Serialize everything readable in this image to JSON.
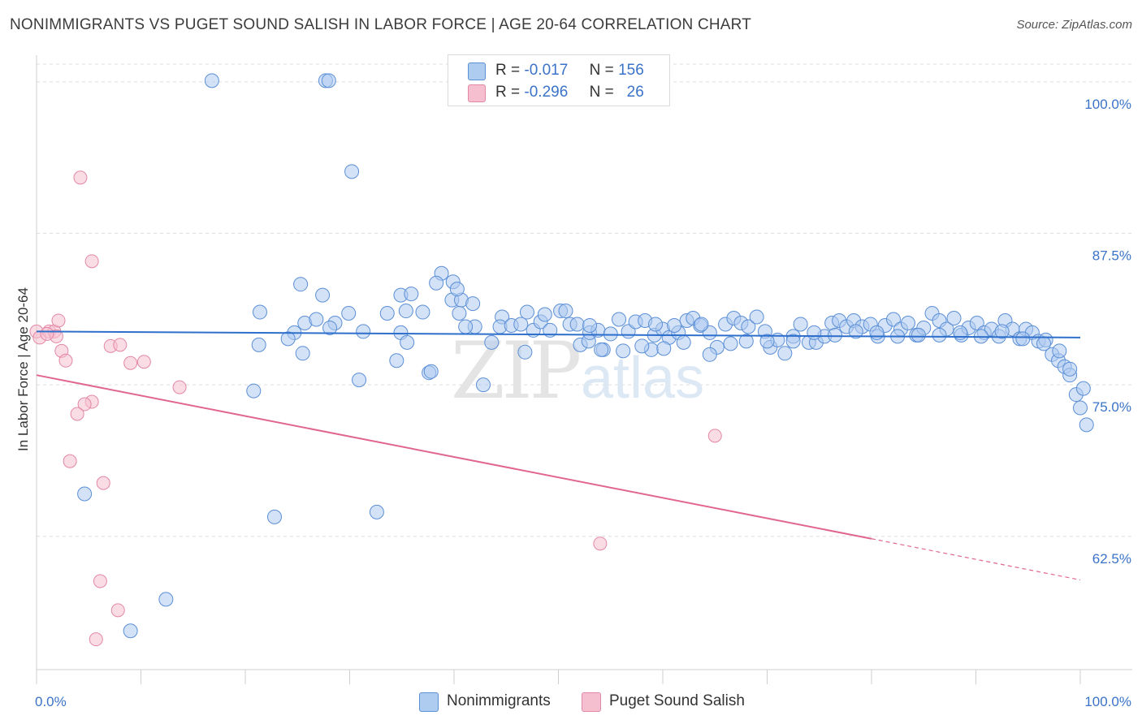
{
  "title": "NONIMMIGRANTS VS PUGET SOUND SALISH IN LABOR FORCE | AGE 20-64 CORRELATION CHART",
  "source": "Source: ZipAtlas.com",
  "legend": {
    "rows": [
      {
        "r_label": "R =",
        "r_value": "-0.017",
        "n_label": "N =",
        "n_value": "156"
      },
      {
        "r_label": "R =",
        "r_value": "-0.296",
        "n_label": "N =",
        "n_value": "26"
      }
    ],
    "series_names": [
      "Nonimmigrants",
      "Puget Sound Salish"
    ]
  },
  "watermark": {
    "zip": "ZIP",
    "atlas": "atlas"
  },
  "colors": {
    "blue_fill": "#aecbf0",
    "blue_stroke": "#5b8fd6",
    "blue_line": "#2e6fcc",
    "pink_fill": "#f6bfd0",
    "pink_stroke": "#e387a6",
    "pink_line": "#e0668f",
    "tick_label": "#3a73c8",
    "grid": "#dddddd"
  },
  "chart_data": {
    "type": "scatter",
    "ylabel": "In Labor Force | Age 20-64",
    "xlabel": "",
    "x_tick_labels": [
      "0.0%",
      "100.0%"
    ],
    "y_tick_labels": [
      "100.0%",
      "87.5%",
      "75.0%",
      "62.5%"
    ],
    "y_ticks": [
      100.0,
      87.5,
      75.0,
      62.5
    ],
    "xlim": [
      0,
      100
    ],
    "ylim": [
      51.5,
      102.2
    ],
    "grid": "horizontal dashed",
    "series": [
      {
        "name": "Nonimmigrants",
        "color": "#5b8fd6",
        "trend": {
          "x0": 0,
          "y0": 79.4,
          "x1": 100,
          "y1": 78.9
        },
        "points": [
          [
            16.8,
            100.1
          ],
          [
            27.7,
            100.1
          ],
          [
            28.0,
            100.1
          ],
          [
            30.2,
            92.6
          ],
          [
            25.3,
            83.3
          ],
          [
            27.4,
            82.4
          ],
          [
            21.4,
            81.0
          ],
          [
            24.7,
            79.3
          ],
          [
            25.7,
            80.1
          ],
          [
            26.8,
            80.4
          ],
          [
            28.6,
            80.1
          ],
          [
            29.9,
            80.9
          ],
          [
            21.3,
            78.3
          ],
          [
            24.1,
            78.8
          ],
          [
            25.5,
            77.6
          ],
          [
            28.1,
            79.7
          ],
          [
            31.3,
            79.4
          ],
          [
            34.9,
            82.4
          ],
          [
            35.4,
            81.1
          ],
          [
            35.9,
            82.5
          ],
          [
            38.8,
            84.2
          ],
          [
            39.8,
            82.0
          ],
          [
            38.3,
            83.4
          ],
          [
            39.9,
            83.5
          ],
          [
            40.7,
            82.0
          ],
          [
            41.8,
            81.7
          ],
          [
            42.0,
            79.8
          ],
          [
            40.5,
            80.9
          ],
          [
            42.8,
            75.0
          ],
          [
            34.9,
            79.3
          ],
          [
            33.6,
            80.9
          ],
          [
            34.5,
            77.0
          ],
          [
            35.5,
            78.5
          ],
          [
            37.6,
            76.0
          ],
          [
            37.8,
            76.1
          ],
          [
            41.1,
            79.8
          ],
          [
            30.9,
            75.4
          ],
          [
            20.8,
            74.5
          ],
          [
            43.6,
            78.5
          ],
          [
            44.6,
            80.6
          ],
          [
            44.4,
            79.8
          ],
          [
            45.5,
            79.9
          ],
          [
            46.4,
            80.0
          ],
          [
            47.6,
            79.5
          ],
          [
            46.8,
            77.7
          ],
          [
            48.3,
            80.2
          ],
          [
            49.2,
            79.5
          ],
          [
            48.7,
            80.8
          ],
          [
            50.2,
            81.1
          ],
          [
            50.7,
            81.1
          ],
          [
            51.1,
            80.0
          ],
          [
            51.8,
            80.0
          ],
          [
            52.1,
            78.3
          ],
          [
            52.9,
            78.6
          ],
          [
            53.0,
            79.3
          ],
          [
            53.8,
            79.5
          ],
          [
            54.3,
            77.9
          ],
          [
            55.0,
            79.2
          ],
          [
            55.8,
            80.4
          ],
          [
            56.7,
            79.4
          ],
          [
            57.4,
            80.2
          ],
          [
            58.3,
            80.3
          ],
          [
            58.9,
            77.9
          ],
          [
            59.2,
            79.1
          ],
          [
            60.0,
            79.6
          ],
          [
            60.6,
            78.9
          ],
          [
            61.5,
            79.3
          ],
          [
            62.3,
            80.3
          ],
          [
            62.9,
            80.5
          ],
          [
            63.6,
            79.9
          ],
          [
            64.5,
            79.3
          ],
          [
            65.2,
            78.1
          ],
          [
            66.0,
            80.0
          ],
          [
            66.8,
            80.5
          ],
          [
            67.5,
            80.1
          ],
          [
            68.2,
            79.8
          ],
          [
            69.0,
            80.6
          ],
          [
            69.8,
            79.4
          ],
          [
            70.3,
            78.1
          ],
          [
            71.0,
            78.7
          ],
          [
            71.7,
            77.6
          ],
          [
            72.5,
            79.0
          ],
          [
            73.2,
            80.0
          ],
          [
            74.0,
            78.5
          ],
          [
            74.7,
            78.5
          ],
          [
            75.5,
            79.0
          ],
          [
            76.2,
            80.1
          ],
          [
            76.9,
            80.3
          ],
          [
            77.6,
            79.8
          ],
          [
            78.3,
            80.3
          ],
          [
            79.1,
            79.8
          ],
          [
            79.9,
            80.0
          ],
          [
            80.6,
            79.0
          ],
          [
            81.3,
            79.9
          ],
          [
            82.1,
            80.4
          ],
          [
            82.8,
            79.6
          ],
          [
            83.5,
            80.1
          ],
          [
            84.3,
            79.1
          ],
          [
            85.0,
            79.7
          ],
          [
            85.8,
            80.9
          ],
          [
            86.5,
            80.3
          ],
          [
            87.2,
            79.6
          ],
          [
            87.9,
            80.5
          ],
          [
            88.6,
            79.1
          ],
          [
            89.3,
            79.7
          ],
          [
            90.1,
            80.1
          ],
          [
            90.8,
            79.3
          ],
          [
            91.5,
            79.6
          ],
          [
            92.2,
            79.0
          ],
          [
            92.8,
            80.3
          ],
          [
            93.5,
            79.6
          ],
          [
            94.2,
            78.8
          ],
          [
            94.8,
            79.6
          ],
          [
            95.4,
            79.3
          ],
          [
            96.0,
            78.6
          ],
          [
            96.7,
            78.7
          ],
          [
            97.3,
            77.5
          ],
          [
            97.9,
            77.0
          ],
          [
            98.5,
            76.5
          ],
          [
            99.0,
            75.8
          ],
          [
            99.6,
            74.2
          ],
          [
            100.0,
            73.1
          ],
          [
            100.6,
            71.7
          ],
          [
            62.0,
            78.5
          ],
          [
            60.1,
            78.0
          ],
          [
            58.0,
            78.2
          ],
          [
            56.2,
            77.8
          ],
          [
            54.1,
            77.9
          ],
          [
            64.5,
            77.5
          ],
          [
            66.5,
            78.4
          ],
          [
            68.0,
            78.6
          ],
          [
            70.0,
            78.6
          ],
          [
            72.5,
            78.6
          ],
          [
            74.5,
            79.3
          ],
          [
            76.5,
            79.1
          ],
          [
            78.5,
            79.4
          ],
          [
            80.5,
            79.3
          ],
          [
            82.5,
            79.0
          ],
          [
            84.5,
            79.1
          ],
          [
            86.5,
            79.1
          ],
          [
            88.5,
            79.3
          ],
          [
            90.5,
            79.0
          ],
          [
            92.5,
            79.4
          ],
          [
            94.5,
            78.8
          ],
          [
            96.5,
            78.4
          ],
          [
            98.0,
            77.8
          ],
          [
            99.0,
            76.3
          ],
          [
            100.3,
            74.7
          ],
          [
            4.6,
            66.0
          ],
          [
            22.8,
            64.1
          ],
          [
            32.6,
            64.5
          ],
          [
            12.4,
            57.3
          ],
          [
            9.0,
            54.7
          ],
          [
            40.3,
            82.9
          ],
          [
            37.0,
            81.0
          ],
          [
            47.0,
            81.0
          ],
          [
            53.0,
            79.9
          ],
          [
            59.3,
            80.0
          ],
          [
            61.1,
            79.9
          ],
          [
            63.7,
            80.0
          ]
        ]
      },
      {
        "name": "Puget Sound Salish",
        "color": "#e387a6",
        "trend": {
          "x0": 0,
          "y0": 75.8,
          "x1": 80,
          "y1": 62.3,
          "dash_to_x": 100,
          "dash_to_y": 58.9
        },
        "points": [
          [
            0.0,
            79.4
          ],
          [
            0.3,
            78.9
          ],
          [
            1.2,
            79.4
          ],
          [
            1.7,
            79.4
          ],
          [
            1.9,
            79.0
          ],
          [
            2.1,
            80.3
          ],
          [
            2.4,
            77.8
          ],
          [
            2.8,
            77.0
          ],
          [
            4.2,
            92.1
          ],
          [
            5.3,
            85.2
          ],
          [
            7.1,
            78.2
          ],
          [
            8.0,
            78.3
          ],
          [
            9.0,
            76.8
          ],
          [
            10.3,
            76.9
          ],
          [
            13.7,
            74.8
          ],
          [
            5.3,
            73.6
          ],
          [
            4.6,
            73.4
          ],
          [
            3.9,
            72.6
          ],
          [
            3.2,
            68.7
          ],
          [
            6.4,
            66.9
          ],
          [
            6.1,
            58.8
          ],
          [
            7.8,
            56.4
          ],
          [
            5.7,
            54.0
          ],
          [
            65.0,
            70.8
          ],
          [
            54.0,
            61.9
          ],
          [
            1.0,
            79.2
          ]
        ]
      }
    ]
  }
}
